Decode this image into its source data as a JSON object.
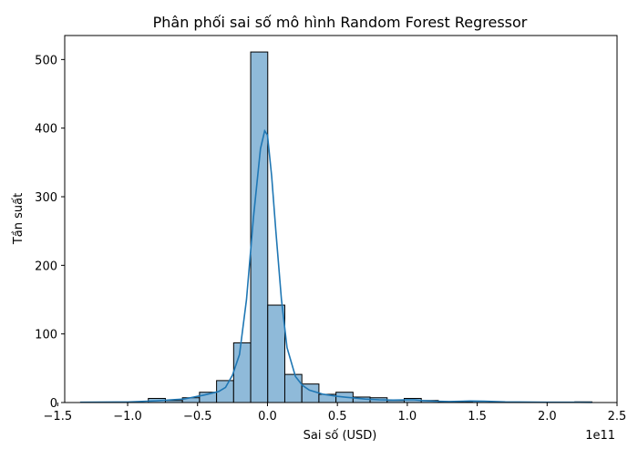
{
  "chart_data": {
    "type": "bar",
    "title": "Phân phối sai số mô hình Random Forest Regressor",
    "xlabel": "Sai số (USD)",
    "ylabel": "Tần suất",
    "x_offset_label": "1e11",
    "xlim": [
      -1.45,
      2.5
    ],
    "ylim": [
      0,
      535
    ],
    "x_ticks": [
      -1.5,
      -1.0,
      -0.5,
      0.0,
      0.5,
      1.0,
      1.5,
      2.0,
      2.5
    ],
    "x_tick_labels": [
      "−1.5",
      "−1.0",
      "−0.5",
      "0.0",
      "0.5",
      "1.0",
      "1.5",
      "2.0",
      "2.5"
    ],
    "y_ticks": [
      0,
      100,
      200,
      300,
      400,
      500
    ],
    "y_tick_labels": [
      "0",
      "100",
      "200",
      "300",
      "400",
      "500"
    ],
    "bar_color": "#8fbad9",
    "line_color": "#1f77b4",
    "bins": [
      {
        "x0": -1.34,
        "x1": -1.218,
        "count": 0
      },
      {
        "x0": -1.218,
        "x1": -1.096,
        "count": 0
      },
      {
        "x0": -1.096,
        "x1": -0.974,
        "count": 0
      },
      {
        "x0": -0.974,
        "x1": -0.852,
        "count": 0
      },
      {
        "x0": -0.852,
        "x1": -0.73,
        "count": 6
      },
      {
        "x0": -0.73,
        "x1": -0.608,
        "count": 3
      },
      {
        "x0": -0.608,
        "x1": -0.486,
        "count": 7
      },
      {
        "x0": -0.486,
        "x1": -0.364,
        "count": 15
      },
      {
        "x0": -0.364,
        "x1": -0.242,
        "count": 32
      },
      {
        "x0": -0.242,
        "x1": -0.12,
        "count": 87
      },
      {
        "x0": -0.12,
        "x1": 0.002,
        "count": 511
      },
      {
        "x0": 0.002,
        "x1": 0.124,
        "count": 142
      },
      {
        "x0": 0.124,
        "x1": 0.246,
        "count": 41
      },
      {
        "x0": 0.246,
        "x1": 0.368,
        "count": 27
      },
      {
        "x0": 0.368,
        "x1": 0.49,
        "count": 12
      },
      {
        "x0": 0.49,
        "x1": 0.612,
        "count": 15
      },
      {
        "x0": 0.612,
        "x1": 0.734,
        "count": 8
      },
      {
        "x0": 0.734,
        "x1": 0.856,
        "count": 7
      },
      {
        "x0": 0.856,
        "x1": 0.978,
        "count": 3
      },
      {
        "x0": 0.978,
        "x1": 1.1,
        "count": 6
      },
      {
        "x0": 1.1,
        "x1": 1.222,
        "count": 3
      },
      {
        "x0": 1.222,
        "x1": 1.344,
        "count": 1
      },
      {
        "x0": 1.344,
        "x1": 1.466,
        "count": 1
      },
      {
        "x0": 1.466,
        "x1": 1.588,
        "count": 2
      },
      {
        "x0": 1.588,
        "x1": 1.71,
        "count": 0
      },
      {
        "x0": 1.71,
        "x1": 1.832,
        "count": 0
      },
      {
        "x0": 1.832,
        "x1": 1.954,
        "count": 0
      },
      {
        "x0": 1.954,
        "x1": 2.076,
        "count": 0
      },
      {
        "x0": 2.076,
        "x1": 2.198,
        "count": 0
      },
      {
        "x0": 2.198,
        "x1": 2.32,
        "count": 1
      }
    ],
    "kde": [
      [
        -1.34,
        0.5
      ],
      [
        -1.0,
        0.8
      ],
      [
        -0.8,
        2.5
      ],
      [
        -0.6,
        5
      ],
      [
        -0.5,
        9
      ],
      [
        -0.45,
        11
      ],
      [
        -0.35,
        16
      ],
      [
        -0.3,
        22
      ],
      [
        -0.25,
        40
      ],
      [
        -0.2,
        70
      ],
      [
        -0.15,
        150
      ],
      [
        -0.1,
        270
      ],
      [
        -0.05,
        370
      ],
      [
        -0.02,
        396
      ],
      [
        0.0,
        390
      ],
      [
        0.03,
        330
      ],
      [
        0.06,
        250
      ],
      [
        0.1,
        150
      ],
      [
        0.14,
        80
      ],
      [
        0.2,
        38
      ],
      [
        0.25,
        25
      ],
      [
        0.3,
        18
      ],
      [
        0.4,
        12
      ],
      [
        0.5,
        9
      ],
      [
        0.6,
        7
      ],
      [
        0.7,
        5
      ],
      [
        0.8,
        4
      ],
      [
        0.9,
        3.5
      ],
      [
        1.0,
        4
      ],
      [
        1.05,
        4
      ],
      [
        1.1,
        3
      ],
      [
        1.2,
        2
      ],
      [
        1.3,
        1.5
      ],
      [
        1.45,
        2.2
      ],
      [
        1.55,
        2
      ],
      [
        1.7,
        1
      ],
      [
        2.0,
        0.5
      ],
      [
        2.32,
        0.3
      ]
    ]
  }
}
